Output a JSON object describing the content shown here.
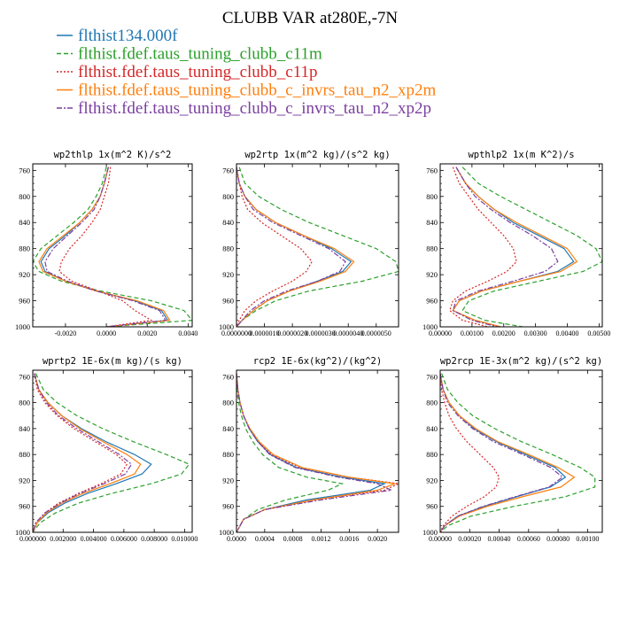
{
  "title": "CLUBB VAR at280E,-7N",
  "legend": [
    {
      "label": "flthist134.000f",
      "color": "#1f77b4",
      "dash": "solid"
    },
    {
      "label": "flthist.fdef.taus_tuning_clubb_c11m",
      "color": "#2ca02c",
      "dash": "dashed"
    },
    {
      "label": "flthist.fdef.taus_tuning_clubb_c11p",
      "color": "#d62728",
      "dash": "dotted"
    },
    {
      "label": "flthist.fdef.taus_tuning_clubb_c_invrs_tau_n2_xp2m",
      "color": "#ff7f0e",
      "dash": "solid"
    },
    {
      "label": "flthist.fdef.taus_tuning_clubb_c_invrs_tau_n2_xp2p",
      "color": "#7b3fa0",
      "dash": "dashdot"
    }
  ],
  "chart_data": [
    {
      "type": "line",
      "title": "wp2thlp  1x(m^2 K)/s^2",
      "xlim": [
        -0.0036,
        0.0042
      ],
      "ylim": [
        1000,
        750
      ],
      "xticks": [
        -0.002,
        0.0,
        0.002,
        0.004
      ],
      "xtick_labels": [
        "-0.0020",
        "0.0000",
        "0.0020",
        "0.0040"
      ],
      "yticks": [
        760,
        800,
        840,
        880,
        920,
        960,
        1000
      ],
      "y": [
        755,
        780,
        800,
        820,
        840,
        860,
        880,
        900,
        915,
        930,
        945,
        960,
        975,
        990,
        1000
      ],
      "series": [
        {
          "name": "flthist134.000f",
          "values": [
            0.0001,
            -0.0001,
            -0.0003,
            -0.0007,
            -0.0013,
            -0.002,
            -0.0028,
            -0.0032,
            -0.003,
            -0.002,
            -0.0005,
            0.0014,
            0.0027,
            0.003,
            0.0
          ]
        },
        {
          "name": "flthist.fdef.taus_tuning_clubb_c11m",
          "values": [
            0.0,
            -0.0002,
            -0.0005,
            -0.0009,
            -0.0016,
            -0.0024,
            -0.0032,
            -0.0036,
            -0.0033,
            -0.0022,
            -0.0003,
            0.0022,
            0.0038,
            0.0042,
            0.0
          ]
        },
        {
          "name": "flthist.fdef.taus_tuning_clubb_c11p",
          "values": [
            0.0002,
            0.0001,
            -0.0001,
            -0.0003,
            -0.0007,
            -0.0012,
            -0.0018,
            -0.0022,
            -0.0023,
            -0.0017,
            -0.0004,
            0.0008,
            0.0014,
            0.0022,
            0.0
          ]
        },
        {
          "name": "flthist.fdef.taus_tuning_clubb_c_invrs_tau_n2_xp2m",
          "values": [
            0.0001,
            -0.0001,
            -0.0003,
            -0.0007,
            -0.0013,
            -0.0021,
            -0.0029,
            -0.0033,
            -0.0031,
            -0.002,
            -0.0005,
            0.0015,
            0.0028,
            0.0031,
            0.0
          ]
        },
        {
          "name": "flthist.fdef.taus_tuning_clubb_c_invrs_tau_n2_xp2p",
          "values": [
            0.0001,
            -0.0001,
            -0.0003,
            -0.0006,
            -0.0012,
            -0.0019,
            -0.0026,
            -0.003,
            -0.0029,
            -0.0019,
            -0.0005,
            0.0013,
            0.0026,
            0.0029,
            0.0
          ]
        }
      ]
    },
    {
      "type": "line",
      "title": "wp2rtp  1x(m^2 kg)/(s^2 kg)",
      "xlim": [
        0.0,
        5.8e-06
      ],
      "ylim": [
        1000,
        750
      ],
      "xticks": [
        0.0,
        1e-06,
        2e-06,
        3e-06,
        4e-06,
        5e-06
      ],
      "xtick_labels": [
        "0.0000000",
        "0.0000010",
        "0.0000020",
        "0.0000030",
        "0.0000040",
        "0.0000050"
      ],
      "yticks": [
        760,
        800,
        840,
        880,
        920,
        960,
        1000
      ],
      "y": [
        755,
        780,
        800,
        820,
        840,
        860,
        880,
        900,
        915,
        930,
        945,
        960,
        975,
        990,
        1000
      ],
      "series": [
        {
          "name": "flthist134.000f",
          "values": [
            0.0,
            1e-07,
            3e-07,
            7e-07,
            1.4e-06,
            2.4e-06,
            3.4e-06,
            4.1e-06,
            3.8e-06,
            2.9e-06,
            1.9e-06,
            1.1e-06,
            6e-07,
            2e-07,
            0.0
          ]
        },
        {
          "name": "flthist.fdef.taus_tuning_clubb_c11m",
          "values": [
            1e-07,
            3e-07,
            8e-07,
            1.6e-06,
            2.6e-06,
            3.8e-06,
            5e-06,
            5.7e-06,
            5.8e-06,
            4.5e-06,
            2.6e-06,
            1.4e-06,
            7e-07,
            2e-07,
            0.0
          ]
        },
        {
          "name": "flthist.fdef.taus_tuning_clubb_c11p",
          "values": [
            0.0,
            1e-07,
            2e-07,
            4e-07,
            9e-07,
            1.6e-06,
            2.3e-06,
            2.7e-06,
            2.5e-06,
            2e-06,
            1.3e-06,
            7e-07,
            3e-07,
            1e-07,
            0.0
          ]
        },
        {
          "name": "flthist.fdef.taus_tuning_clubb_c_invrs_tau_n2_xp2m",
          "values": [
            0.0,
            1e-07,
            3e-07,
            7e-07,
            1.4e-06,
            2.4e-06,
            3.5e-06,
            4.2e-06,
            3.9e-06,
            3e-06,
            1.9e-06,
            1.1e-06,
            6e-07,
            2e-07,
            0.0
          ]
        },
        {
          "name": "flthist.fdef.taus_tuning_clubb_c_invrs_tau_n2_xp2p",
          "values": [
            0.0,
            1e-07,
            3e-07,
            6e-07,
            1.3e-06,
            2.3e-06,
            3.3e-06,
            3.9e-06,
            3.7e-06,
            2.9e-06,
            1.8e-06,
            1e-06,
            5e-07,
            2e-07,
            0.0
          ]
        }
      ]
    },
    {
      "type": "line",
      "title": "wpthlp2  1x(m K^2)/s",
      "xlim": [
        0.0,
        0.0051
      ],
      "ylim": [
        1000,
        750
      ],
      "xticks": [
        0.0,
        0.001,
        0.002,
        0.003,
        0.004,
        0.005
      ],
      "xtick_labels": [
        "0.00000",
        "0.00100",
        "0.00200",
        "0.00300",
        "0.00400",
        "0.00500"
      ],
      "yticks": [
        760,
        800,
        840,
        880,
        920,
        960,
        1000
      ],
      "y": [
        755,
        780,
        800,
        820,
        840,
        860,
        880,
        900,
        915,
        930,
        945,
        960,
        975,
        990,
        1000
      ],
      "series": [
        {
          "name": "flthist134.000f",
          "values": [
            0.0005,
            0.0008,
            0.0012,
            0.0017,
            0.0023,
            0.0031,
            0.0039,
            0.0042,
            0.0037,
            0.0025,
            0.0013,
            0.0006,
            0.0004,
            0.0011,
            0.0019
          ]
        },
        {
          "name": "flthist.fdef.taus_tuning_clubb_c11m",
          "values": [
            0.0007,
            0.0012,
            0.0019,
            0.0027,
            0.0035,
            0.0043,
            0.0049,
            0.0051,
            0.0045,
            0.0031,
            0.0017,
            0.0009,
            0.0007,
            0.0014,
            0.0026
          ]
        },
        {
          "name": "flthist.fdef.taus_tuning_clubb_c11p",
          "values": [
            0.0004,
            0.0006,
            0.0009,
            0.0012,
            0.0016,
            0.002,
            0.0023,
            0.0024,
            0.0021,
            0.0015,
            0.0008,
            0.0004,
            0.0003,
            0.0007,
            0.0015
          ]
        },
        {
          "name": "flthist.fdef.taus_tuning_clubb_c_invrs_tau_n2_xp2m",
          "values": [
            0.0005,
            0.0008,
            0.0012,
            0.0017,
            0.0024,
            0.0032,
            0.004,
            0.0043,
            0.0038,
            0.0025,
            0.0013,
            0.0006,
            0.0004,
            0.0011,
            0.0019
          ]
        },
        {
          "name": "flthist.fdef.taus_tuning_clubb_c_invrs_tau_n2_xp2p",
          "values": [
            0.0005,
            0.0008,
            0.0011,
            0.0016,
            0.0022,
            0.0029,
            0.0035,
            0.0037,
            0.0033,
            0.0023,
            0.0012,
            0.0005,
            0.0004,
            0.001,
            0.0018
          ]
        }
      ]
    },
    {
      "type": "line",
      "title": "wprtp2  1E-6x(m kg)/(s kg)",
      "xlim": [
        0.0,
        0.0105
      ],
      "ylim": [
        1000,
        750
      ],
      "xticks": [
        0.0,
        0.002,
        0.004,
        0.006,
        0.008,
        0.01
      ],
      "xtick_labels": [
        "0.000000",
        "0.002000",
        "0.004000",
        "0.006000",
        "0.008000",
        "0.010000"
      ],
      "yticks": [
        760,
        800,
        840,
        880,
        920,
        960,
        1000
      ],
      "y": [
        755,
        780,
        800,
        820,
        840,
        860,
        880,
        895,
        910,
        925,
        940,
        955,
        970,
        985,
        1000
      ],
      "series": [
        {
          "name": "flthist134.000f",
          "values": [
            0.0001,
            0.0004,
            0.001,
            0.0019,
            0.0032,
            0.0048,
            0.0067,
            0.0078,
            0.0072,
            0.0055,
            0.0036,
            0.0021,
            0.001,
            0.0003,
            0.0
          ]
        },
        {
          "name": "flthist.fdef.taus_tuning_clubb_c11m",
          "values": [
            0.0002,
            0.0007,
            0.0016,
            0.0029,
            0.0046,
            0.0066,
            0.0088,
            0.0103,
            0.0098,
            0.0078,
            0.0052,
            0.003,
            0.0015,
            0.0005,
            0.0
          ]
        },
        {
          "name": "flthist.fdef.taus_tuning_clubb_c11p",
          "values": [
            0.0001,
            0.0003,
            0.0008,
            0.0016,
            0.0027,
            0.0041,
            0.0055,
            0.0062,
            0.0058,
            0.0045,
            0.003,
            0.0017,
            0.0008,
            0.0002,
            0.0
          ]
        },
        {
          "name": "flthist.fdef.taus_tuning_clubb_c_invrs_tau_n2_xp2m",
          "values": [
            0.0001,
            0.0004,
            0.001,
            0.0019,
            0.0031,
            0.0046,
            0.0062,
            0.0071,
            0.0067,
            0.0051,
            0.0033,
            0.0019,
            0.0009,
            0.0003,
            0.0
          ]
        },
        {
          "name": "flthist.fdef.taus_tuning_clubb_c_invrs_tau_n2_xp2p",
          "values": [
            0.0001,
            0.0004,
            0.0009,
            0.0017,
            0.0029,
            0.0043,
            0.0057,
            0.0065,
            0.0061,
            0.0047,
            0.0031,
            0.0018,
            0.0008,
            0.0002,
            0.0
          ]
        }
      ]
    },
    {
      "type": "line",
      "title": "rcp2  1E-6x(kg^2)/(kg^2)",
      "xlim": [
        0.0,
        0.0023
      ],
      "ylim": [
        1000,
        750
      ],
      "xticks": [
        0.0,
        0.0004,
        0.0008,
        0.0012,
        0.0016,
        0.002
      ],
      "xtick_labels": [
        "0.0000",
        "0.0004",
        "0.0008",
        "0.0012",
        "0.0016",
        "0.0020"
      ],
      "yticks": [
        760,
        800,
        840,
        880,
        920,
        960,
        1000
      ],
      "y": [
        755,
        780,
        800,
        820,
        840,
        860,
        880,
        900,
        915,
        925,
        935,
        950,
        965,
        980,
        1000
      ],
      "series": [
        {
          "name": "flthist134.000f",
          "values": [
            0.0,
            2e-05,
            5e-05,
            0.0001,
            0.00018,
            0.0003,
            0.00048,
            0.00085,
            0.0015,
            0.0021,
            0.0019,
            0.001,
            0.0004,
            0.0001,
            0.0
          ]
        },
        {
          "name": "flthist.fdef.taus_tuning_clubb_c11m",
          "values": [
            0.0,
            1e-05,
            3e-05,
            7e-05,
            0.00013,
            0.00023,
            0.00037,
            0.0006,
            0.001,
            0.0015,
            0.0013,
            0.0007,
            0.0003,
            0.0001,
            0.0
          ]
        },
        {
          "name": "flthist.fdef.taus_tuning_clubb_c11p",
          "values": [
            0.0,
            2e-05,
            5e-05,
            0.0001,
            0.00018,
            0.00031,
            0.0005,
            0.0009,
            0.0016,
            0.0023,
            0.0021,
            0.0011,
            0.0004,
            0.0001,
            0.0
          ]
        },
        {
          "name": "flthist.fdef.taus_tuning_clubb_c_invrs_tau_n2_xp2m",
          "values": [
            0.0,
            2e-05,
            5e-05,
            0.0001,
            0.00019,
            0.00032,
            0.00052,
            0.00093,
            0.0016,
            0.00225,
            0.002,
            0.0011,
            0.0004,
            0.0001,
            0.0
          ]
        },
        {
          "name": "flthist.fdef.taus_tuning_clubb_c_invrs_tau_n2_xp2p",
          "values": [
            0.0,
            2e-05,
            5e-05,
            0.0001,
            0.00018,
            0.0003,
            0.00047,
            0.00083,
            0.00145,
            0.002,
            0.0022,
            0.0012,
            0.0004,
            0.0001,
            0.0
          ]
        }
      ]
    },
    {
      "type": "line",
      "title": "wp2rcp  1E-3x(m^2 kg)/(s^2 kg)",
      "xlim": [
        0.0,
        0.0011
      ],
      "ylim": [
        1000,
        750
      ],
      "xticks": [
        0.0,
        0.0002,
        0.0004,
        0.0006,
        0.0008,
        0.001
      ],
      "xtick_labels": [
        "0.00000",
        "0.00020",
        "0.00040",
        "0.00060",
        "0.00080",
        "0.00100"
      ],
      "yticks": [
        760,
        800,
        840,
        880,
        920,
        960,
        1000
      ],
      "y": [
        755,
        780,
        800,
        820,
        840,
        860,
        880,
        900,
        915,
        930,
        945,
        960,
        975,
        990,
        1000
      ],
      "series": [
        {
          "name": "flthist134.000f",
          "values": [
            0.0,
            2e-05,
            6e-05,
            0.00013,
            0.00023,
            0.00038,
            0.00058,
            0.00078,
            0.00085,
            0.00075,
            0.00052,
            0.0003,
            0.00012,
            3e-05,
            0.0
          ]
        },
        {
          "name": "flthist.fdef.taus_tuning_clubb_c11m",
          "values": [
            1e-05,
            5e-05,
            0.00012,
            0.00022,
            0.00037,
            0.00055,
            0.00076,
            0.00095,
            0.00105,
            0.00105,
            0.00085,
            0.0005,
            0.00021,
            5e-05,
            0.0
          ]
        },
        {
          "name": "flthist.fdef.taus_tuning_clubb_c11p",
          "values": [
            0.0,
            1e-05,
            3e-05,
            6e-05,
            0.00011,
            0.00018,
            0.00027,
            0.00036,
            0.0004,
            0.00038,
            0.0003,
            0.00018,
            8e-05,
            2e-05,
            0.0
          ]
        },
        {
          "name": "flthist.fdef.taus_tuning_clubb_c_invrs_tau_n2_xp2m",
          "values": [
            0.0,
            2e-05,
            6e-05,
            0.00013,
            0.00024,
            0.00039,
            0.0006,
            0.0008,
            0.00091,
            0.00082,
            0.00056,
            0.00032,
            0.00013,
            3e-05,
            0.0
          ]
        },
        {
          "name": "flthist.fdef.taus_tuning_clubb_c_invrs_tau_n2_xp2p",
          "values": [
            0.0,
            2e-05,
            5e-05,
            0.00012,
            0.00022,
            0.00036,
            0.00056,
            0.00075,
            0.00083,
            0.00074,
            0.00051,
            0.00029,
            0.00012,
            3e-05,
            0.0
          ]
        }
      ]
    }
  ]
}
